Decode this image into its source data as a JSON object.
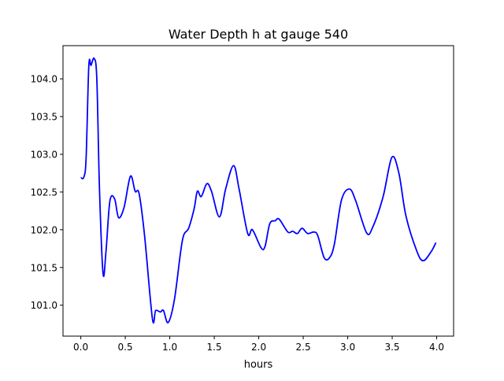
{
  "chart_data": {
    "type": "line",
    "title": "Water Depth h at gauge 540",
    "xlabel": "hours",
    "ylabel": "",
    "xlim": [
      -0.2,
      4.19
    ],
    "ylim": [
      100.59,
      104.44
    ],
    "xticks": [
      0.0,
      0.5,
      1.0,
      1.5,
      2.0,
      2.5,
      3.0,
      3.5,
      4.0
    ],
    "xtick_labels": [
      "0.0",
      "0.5",
      "1.0",
      "1.5",
      "2.0",
      "2.5",
      "3.0",
      "3.5",
      "4.0"
    ],
    "yticks": [
      101.0,
      101.5,
      102.0,
      102.5,
      103.0,
      103.5,
      104.0
    ],
    "ytick_labels": [
      "101.0",
      "101.5",
      "102.0",
      "102.5",
      "103.0",
      "103.5",
      "104.0"
    ],
    "grid": false,
    "series": [
      {
        "name": "h",
        "color": "#0000ff",
        "x": [
          0.0,
          0.035,
          0.06,
          0.09,
          0.115,
          0.15,
          0.18,
          0.21,
          0.25,
          0.283,
          0.327,
          0.38,
          0.425,
          0.487,
          0.558,
          0.611,
          0.655,
          0.717,
          0.805,
          0.841,
          0.894,
          0.929,
          0.982,
          1.053,
          1.142,
          1.212,
          1.274,
          1.31,
          1.354,
          1.416,
          1.469,
          1.558,
          1.628,
          1.717,
          1.779,
          1.876,
          1.929,
          2.027,
          2.071,
          2.124,
          2.186,
          2.23,
          2.327,
          2.381,
          2.434,
          2.487,
          2.549,
          2.62,
          2.664,
          2.735,
          2.796,
          2.85,
          2.929,
          3.018,
          3.088,
          3.212,
          3.283,
          3.398,
          3.496,
          3.575,
          3.655,
          3.779,
          3.85,
          3.938,
          3.991
        ],
        "y": [
          102.69,
          102.7,
          102.96,
          104.17,
          104.18,
          104.27,
          104.0,
          102.54,
          101.42,
          101.71,
          102.38,
          102.41,
          102.16,
          102.3,
          102.71,
          102.51,
          102.48,
          101.92,
          100.82,
          100.93,
          100.91,
          100.93,
          100.77,
          101.08,
          101.86,
          102.02,
          102.28,
          102.51,
          102.44,
          102.61,
          102.51,
          102.17,
          102.54,
          102.85,
          102.54,
          101.95,
          102.0,
          101.76,
          101.78,
          102.08,
          102.12,
          102.14,
          101.97,
          101.98,
          101.95,
          102.02,
          101.95,
          101.97,
          101.92,
          101.63,
          101.63,
          101.81,
          102.39,
          102.54,
          102.39,
          101.96,
          102.04,
          102.44,
          102.96,
          102.75,
          102.18,
          101.71,
          101.59,
          101.71,
          101.83
        ]
      }
    ]
  }
}
